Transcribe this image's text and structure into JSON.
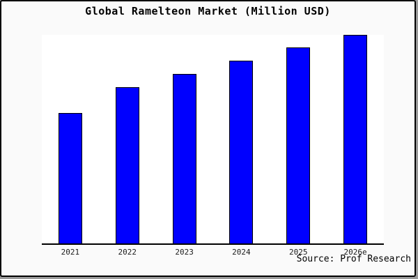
{
  "title": "Global Ramelteon Market (Million USD)",
  "source": "Source: Prof Research",
  "colors": {
    "bar_fill": "#0000fe",
    "bar_border": "#000000",
    "figure_bg": "#fafafa",
    "plot_bg": "#ffffff",
    "axis": "#000000"
  },
  "chart_data": {
    "type": "bar",
    "title": "Global Ramelteon Market (Million USD)",
    "categories": [
      "2021",
      "2022",
      "2023",
      "2024",
      "2025",
      "2026e"
    ],
    "values": [
      62.7,
      75.0,
      81.3,
      87.7,
      94.0,
      100.0
    ],
    "values_note": "No y-axis shown in chart; values are relative bar heights as percent of the tallest (2026e) bar",
    "xlabel": "",
    "ylabel": "",
    "ylim": [
      0,
      100
    ],
    "grid": false,
    "legend": null,
    "annotations": [
      "Source: Prof Research"
    ]
  }
}
